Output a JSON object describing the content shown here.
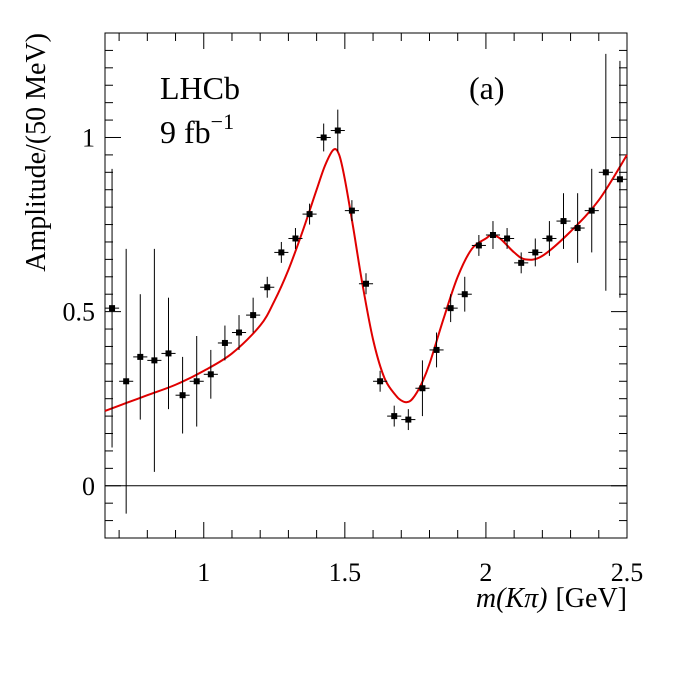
{
  "chart_data": {
    "type": "scatter",
    "title": "",
    "xlabel_italic": "m(Kπ)",
    "xlabel_unit": "[GeV]",
    "ylabel": "Amplitude/(50 MeV)",
    "xlim": [
      0.65,
      2.5
    ],
    "ylim": [
      -0.15,
      1.3
    ],
    "x_ticks": [
      1,
      1.5,
      2,
      2.5
    ],
    "x_tick_labels": [
      "1",
      "1.5",
      "2",
      "2.5"
    ],
    "y_ticks": [
      0,
      0.5,
      1
    ],
    "y_tick_labels": [
      "0",
      "0.5",
      "1"
    ],
    "annotations": {
      "experiment": "LHCb",
      "luminosity": "9 fb",
      "luminosity_exponent": "−1",
      "panel": "(a)"
    },
    "colors": {
      "fit": "#e00000",
      "points": "#000000",
      "zero_line": "#000000"
    },
    "series": [
      {
        "name": "Data",
        "x": [
          0.675,
          0.725,
          0.775,
          0.825,
          0.875,
          0.925,
          0.975,
          1.025,
          1.075,
          1.125,
          1.175,
          1.225,
          1.275,
          1.325,
          1.375,
          1.425,
          1.475,
          1.525,
          1.575,
          1.625,
          1.675,
          1.725,
          1.775,
          1.825,
          1.875,
          1.925,
          1.975,
          2.025,
          2.075,
          2.125,
          2.175,
          2.225,
          2.275,
          2.325,
          2.375,
          2.425,
          2.475
        ],
        "y": [
          0.51,
          0.3,
          0.37,
          0.36,
          0.38,
          0.26,
          0.3,
          0.32,
          0.41,
          0.44,
          0.49,
          0.57,
          0.67,
          0.71,
          0.78,
          1.0,
          1.02,
          0.79,
          0.58,
          0.3,
          0.2,
          0.19,
          0.28,
          0.39,
          0.51,
          0.55,
          0.69,
          0.72,
          0.71,
          0.64,
          0.67,
          0.71,
          0.76,
          0.74,
          0.79,
          0.9,
          0.88
        ],
        "yerr": [
          0.4,
          0.38,
          0.18,
          0.32,
          0.16,
          0.11,
          0.13,
          0.07,
          0.05,
          0.05,
          0.05,
          0.03,
          0.03,
          0.03,
          0.03,
          0.04,
          0.06,
          0.03,
          0.03,
          0.03,
          0.03,
          0.03,
          0.08,
          0.05,
          0.04,
          0.05,
          0.03,
          0.04,
          0.03,
          0.03,
          0.04,
          0.05,
          0.08,
          0.1,
          0.12,
          0.34,
          0.34
        ]
      },
      {
        "name": "Fit",
        "x": [
          0.65,
          0.7,
          0.8,
          0.9,
          1.0,
          1.1,
          1.2,
          1.25,
          1.3,
          1.35,
          1.4,
          1.43,
          1.46,
          1.48,
          1.5,
          1.53,
          1.56,
          1.6,
          1.64,
          1.68,
          1.7,
          1.72,
          1.74,
          1.77,
          1.8,
          1.85,
          1.9,
          1.95,
          2.0,
          2.02,
          2.05,
          2.1,
          2.14,
          2.2,
          2.3,
          2.4,
          2.5
        ],
        "y": [
          0.215,
          0.23,
          0.26,
          0.29,
          0.33,
          0.38,
          0.46,
          0.53,
          0.62,
          0.73,
          0.85,
          0.92,
          0.965,
          0.95,
          0.88,
          0.74,
          0.59,
          0.42,
          0.31,
          0.26,
          0.245,
          0.24,
          0.25,
          0.29,
          0.35,
          0.48,
          0.6,
          0.68,
          0.71,
          0.72,
          0.71,
          0.67,
          0.65,
          0.66,
          0.73,
          0.82,
          0.95
        ]
      }
    ]
  }
}
